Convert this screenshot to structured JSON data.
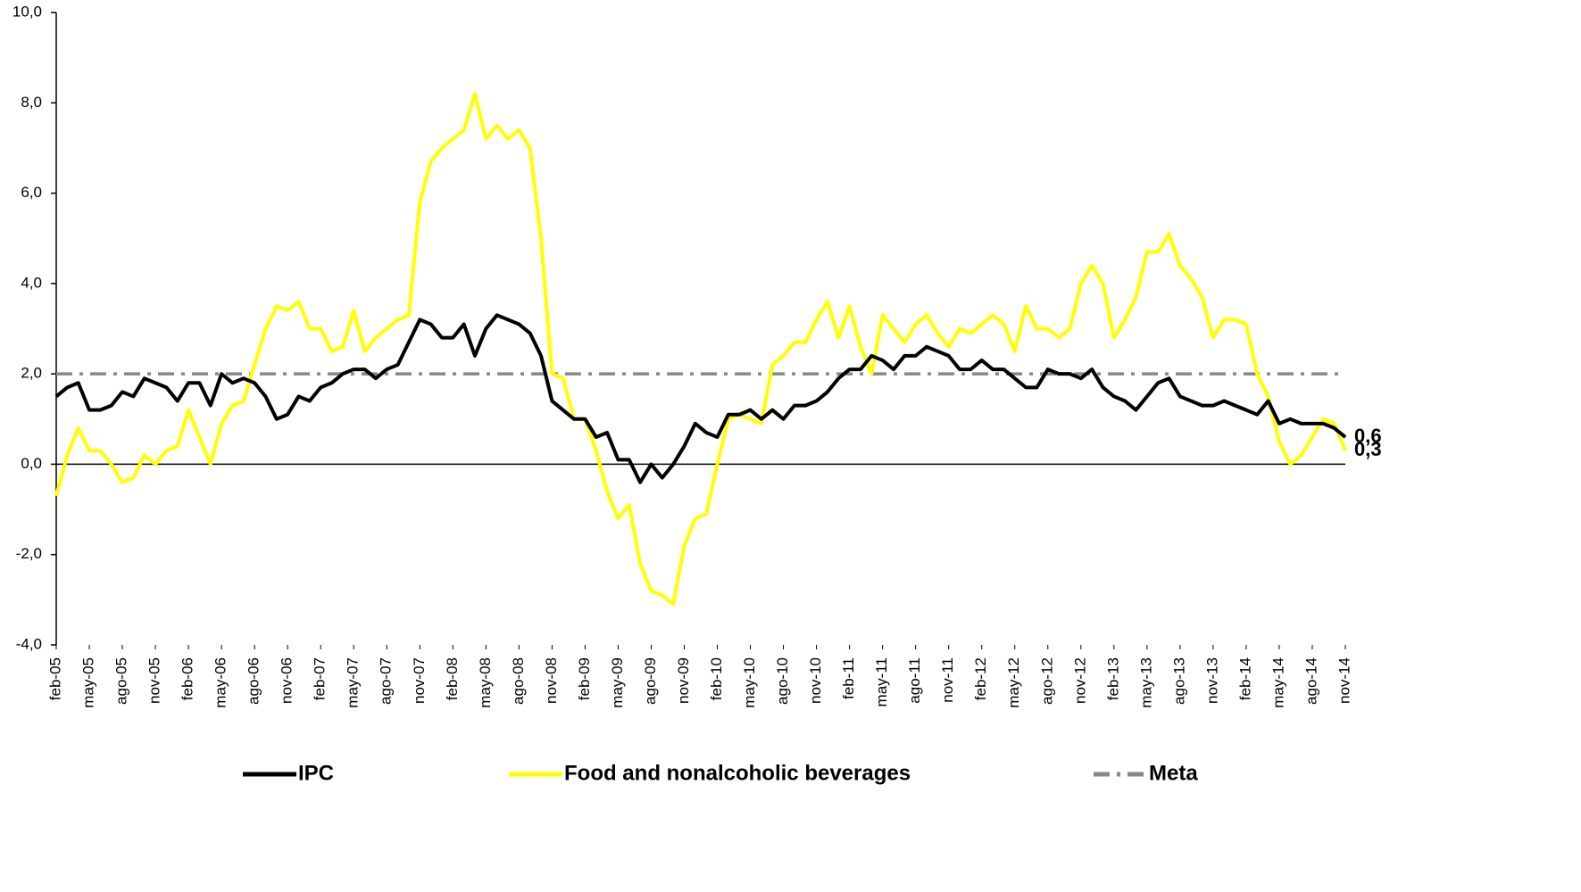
{
  "chart_data": {
    "type": "line",
    "categories": [
      "feb-05",
      null,
      null,
      "may-05",
      null,
      null,
      "ago-05",
      null,
      null,
      "nov-05",
      null,
      null,
      "feb-06",
      null,
      null,
      "may-06",
      null,
      null,
      "ago-06",
      null,
      null,
      "nov-06",
      null,
      null,
      "feb-07",
      null,
      null,
      "may-07",
      null,
      null,
      "ago-07",
      null,
      null,
      "nov-07",
      null,
      null,
      "feb-08",
      null,
      null,
      "may-08",
      null,
      null,
      "ago-08",
      null,
      null,
      "nov-08",
      null,
      null,
      "feb-09",
      null,
      null,
      "may-09",
      null,
      null,
      "ago-09",
      null,
      null,
      "nov-09",
      null,
      null,
      "feb-10",
      null,
      null,
      "may-10",
      null,
      null,
      "ago-10",
      null,
      null,
      "nov-10",
      null,
      null,
      "feb-11",
      null,
      null,
      "may-11",
      null,
      null,
      "ago-11",
      null,
      null,
      "nov-11",
      null,
      null,
      "feb-12",
      null,
      null,
      "may-12",
      null,
      null,
      "ago-12",
      null,
      null,
      "nov-12",
      null,
      null,
      "feb-13",
      null,
      null,
      "may-13",
      null,
      null,
      "ago-13",
      null,
      null,
      "nov-13",
      null,
      null,
      "feb-14",
      null,
      null,
      "may-14",
      null,
      null,
      "ago-14",
      null,
      null,
      "nov-14"
    ],
    "series": [
      {
        "name": "IPC",
        "color": "#000000",
        "dash": "solid",
        "values": [
          1.5,
          1.7,
          1.8,
          1.2,
          1.2,
          1.3,
          1.6,
          1.5,
          1.9,
          1.8,
          1.7,
          1.4,
          1.8,
          1.8,
          1.3,
          2.0,
          1.8,
          1.9,
          1.8,
          1.5,
          1.0,
          1.1,
          1.5,
          1.4,
          1.7,
          1.8,
          2.0,
          2.1,
          2.1,
          1.9,
          2.1,
          2.2,
          2.7,
          3.2,
          3.1,
          2.8,
          2.8,
          3.1,
          2.4,
          3.0,
          3.3,
          3.2,
          3.1,
          2.9,
          2.4,
          1.4,
          1.2,
          1.0,
          1.0,
          0.6,
          0.7,
          0.1,
          0.1,
          -0.4,
          0.0,
          -0.3,
          0.0,
          0.4,
          0.9,
          0.7,
          0.6,
          1.1,
          1.1,
          1.2,
          1.0,
          1.2,
          1.0,
          1.3,
          1.3,
          1.4,
          1.6,
          1.9,
          2.1,
          2.1,
          2.4,
          2.3,
          2.1,
          2.4,
          2.4,
          2.6,
          2.5,
          2.4,
          2.1,
          2.1,
          2.3,
          2.1,
          2.1,
          1.9,
          1.7,
          1.7,
          2.1,
          2.0,
          2.0,
          1.9,
          2.1,
          1.7,
          1.5,
          1.4,
          1.2,
          1.5,
          1.8,
          1.9,
          1.5,
          1.4,
          1.3,
          1.3,
          1.4,
          1.3,
          1.2,
          1.1,
          1.4,
          0.9,
          1.0,
          0.9,
          0.9,
          0.9,
          0.8,
          0.6
        ],
        "value_labels": {
          "117": "0,6"
        }
      },
      {
        "name": "Food and nonalcoholic beverages",
        "color": "#ffff00",
        "label_color": "#f5c400",
        "dash": "solid",
        "values": [
          -0.7,
          0.2,
          0.8,
          0.3,
          0.3,
          0.0,
          -0.4,
          -0.3,
          0.2,
          0.0,
          0.3,
          0.4,
          1.2,
          0.6,
          0.0,
          0.9,
          1.3,
          1.4,
          2.2,
          3.0,
          3.5,
          3.4,
          3.6,
          3.0,
          3.0,
          2.5,
          2.6,
          3.4,
          2.5,
          2.8,
          3.0,
          3.2,
          3.3,
          5.8,
          6.7,
          7.0,
          7.2,
          7.4,
          8.2,
          7.2,
          7.5,
          7.2,
          7.4,
          7.0,
          5.0,
          2.0,
          1.9,
          1.0,
          1.0,
          0.3,
          -0.6,
          -1.2,
          -0.9,
          -2.2,
          -2.8,
          -2.9,
          -3.1,
          -1.8,
          -1.2,
          -1.1,
          0.0,
          1.0,
          1.1,
          1.0,
          0.9,
          2.2,
          2.4,
          2.7,
          2.7,
          3.2,
          3.6,
          2.8,
          3.5,
          2.6,
          2.0,
          3.3,
          3.0,
          2.7,
          3.1,
          3.3,
          2.9,
          2.6,
          3.0,
          2.9,
          3.1,
          3.3,
          3.1,
          2.5,
          3.5,
          3.0,
          3.0,
          2.8,
          3.0,
          4.0,
          4.4,
          4.0,
          2.8,
          3.2,
          3.7,
          4.7,
          4.7,
          5.1,
          4.4,
          4.1,
          3.7,
          2.8,
          3.2,
          3.2,
          3.1,
          2.0,
          1.5,
          0.5,
          0.0,
          0.2,
          0.6,
          1.0,
          0.9,
          0.3
        ],
        "value_labels": {
          "117": "0,3"
        }
      },
      {
        "name": "Meta",
        "color": "#888888",
        "dash": "dashdot",
        "values": [
          2,
          2,
          2,
          2,
          2,
          2,
          2,
          2,
          2,
          2,
          2,
          2,
          2,
          2,
          2,
          2,
          2,
          2,
          2,
          2,
          2,
          2,
          2,
          2,
          2,
          2,
          2,
          2,
          2,
          2,
          2,
          2,
          2,
          2,
          2,
          2,
          2,
          2,
          2,
          2,
          2,
          2,
          2,
          2,
          2,
          2,
          2,
          2,
          2,
          2,
          2,
          2,
          2,
          2,
          2,
          2,
          2,
          2,
          2,
          2,
          2,
          2,
          2,
          2,
          2,
          2,
          2,
          2,
          2,
          2,
          2,
          2,
          2,
          2,
          2,
          2,
          2,
          2,
          2,
          2,
          2,
          2,
          2,
          2,
          2,
          2,
          2,
          2,
          2,
          2,
          2,
          2,
          2,
          2,
          2,
          2,
          2,
          2,
          2,
          2,
          2,
          2,
          2,
          2,
          2,
          2,
          2,
          2,
          2,
          2,
          2,
          2,
          2,
          2,
          2,
          2,
          2,
          2
        ]
      }
    ],
    "ylim": [
      -4,
      10
    ],
    "yticks": [
      {
        "value": -4,
        "label": "-4,0"
      },
      {
        "value": -2,
        "label": "-2,0"
      },
      {
        "value": 0,
        "label": "0,0"
      },
      {
        "value": 2,
        "label": "2,0"
      },
      {
        "value": 4,
        "label": "4,0"
      },
      {
        "value": 6,
        "label": "6,0"
      },
      {
        "value": 8,
        "label": "8,0"
      },
      {
        "value": 10,
        "label": "10,0"
      }
    ],
    "grid": false,
    "legend": "bottom"
  }
}
